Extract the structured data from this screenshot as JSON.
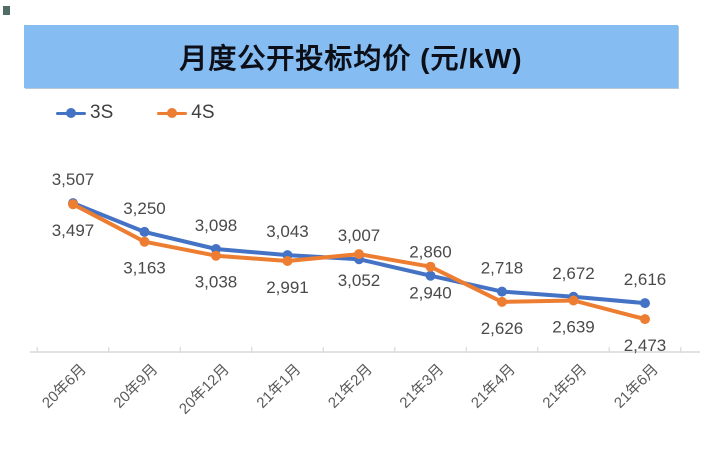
{
  "decoration": {
    "corner_mark_color": "#33524a"
  },
  "title": {
    "text": "月度公开投标均价 (元/kW)",
    "banner_color": "#85bcf1",
    "text_color": "#0d0f18"
  },
  "legend": {
    "items": [
      {
        "label": "3S",
        "color": "#4472c4"
      },
      {
        "label": "4S",
        "color": "#ed7d31"
      }
    ]
  },
  "chart_data": {
    "type": "line",
    "title": "月度公开投标均价 (元/kW)",
    "xlabel": "",
    "ylabel": "",
    "categories": [
      "20年6月",
      "20年9月",
      "20年12月",
      "21年1月",
      "21年2月",
      "21年3月",
      "21年4月",
      "21年5月",
      "21年6月"
    ],
    "series": [
      {
        "name": "3S",
        "color": "#4472c4",
        "values": [
          3507,
          3250,
          3098,
          3043,
          3007,
          2860,
          2718,
          2672,
          2616
        ],
        "label_position": "above"
      },
      {
        "name": "4S",
        "color": "#ed7d31",
        "values": [
          3497,
          3163,
          3038,
          2991,
          3052,
          2940,
          2626,
          2639,
          2473
        ],
        "label_position": "below"
      }
    ],
    "ylim": [
      2180,
      3650
    ],
    "grid": false,
    "data_labels": true,
    "number_format": "thousands-comma",
    "legend_position": "top-left",
    "axis_color": "#d9d9d9",
    "x_label_rotation": -45
  }
}
